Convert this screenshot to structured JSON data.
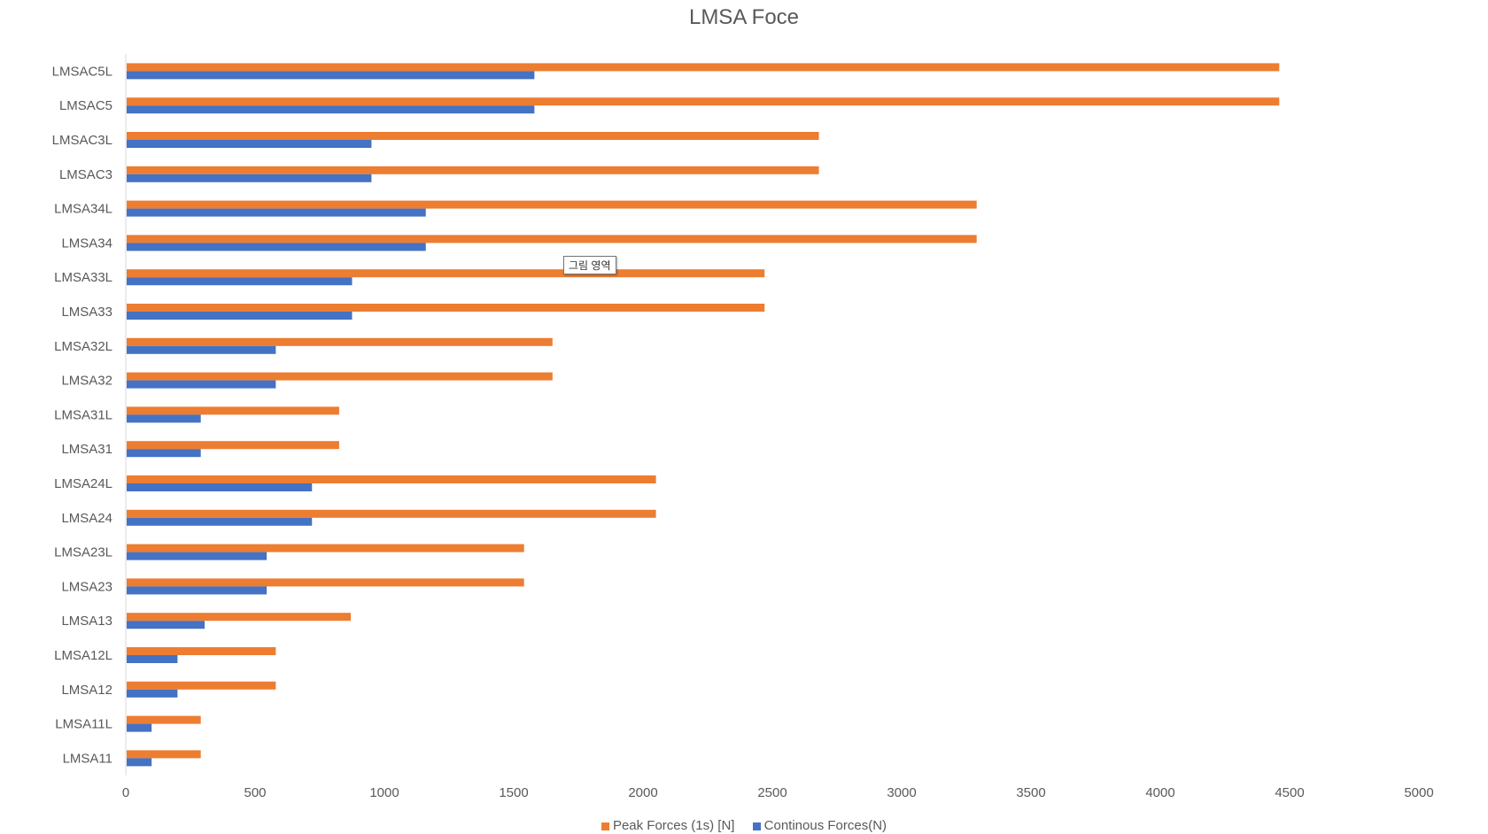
{
  "chart_data": {
    "type": "bar",
    "orientation": "horizontal",
    "title": "LMSA Foce",
    "xlabel": "",
    "ylabel": "",
    "xlim": [
      0,
      5000
    ],
    "xticks": [
      "0",
      "500",
      "1000",
      "1500",
      "2000",
      "2500",
      "3000",
      "3500",
      "4000",
      "4500",
      "5000"
    ],
    "grid": false,
    "legend_position": "bottom",
    "categories": [
      "LMSAC5L",
      "LMSAC5",
      "LMSAC3L",
      "LMSAC3",
      "LMSA34L",
      "LMSA34",
      "LMSA33L",
      "LMSA33",
      "LMSA32L",
      "LMSA32",
      "LMSA31L",
      "LMSA31",
      "LMSA24L",
      "LMSA24",
      "LMSA23L",
      "LMSA23",
      "LMSA13",
      "LMSA12L",
      "LMSA12",
      "LMSA11L",
      "LMSA11"
    ],
    "series": [
      {
        "name": "Peak Forces (1s) [N]",
        "color": "#ED7D31",
        "values": [
          4460,
          4460,
          2680,
          2680,
          3290,
          3290,
          2470,
          2470,
          1650,
          1650,
          825,
          825,
          2050,
          2050,
          1540,
          1540,
          870,
          580,
          580,
          290,
          290
        ]
      },
      {
        "name": "Continous Forces(N)",
        "color": "#4472C4",
        "values": [
          1580,
          1580,
          950,
          950,
          1160,
          1160,
          875,
          875,
          580,
          580,
          290,
          290,
          720,
          720,
          545,
          545,
          305,
          200,
          200,
          100,
          100
        ]
      }
    ]
  },
  "tooltip": "그림 영역"
}
